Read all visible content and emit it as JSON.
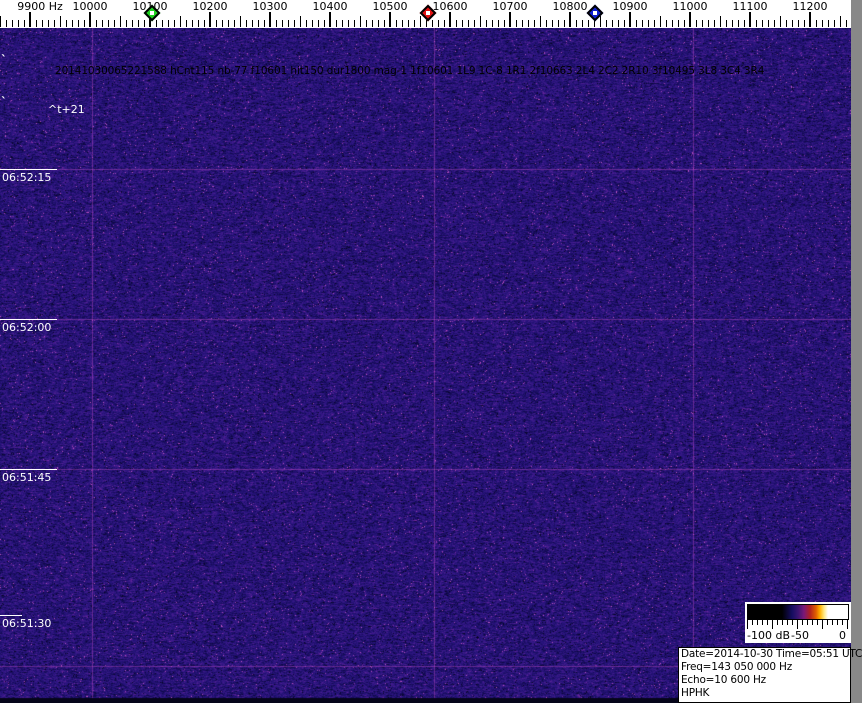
{
  "axis": {
    "tick_labels": [
      {
        "freq": 9900,
        "label": "9900 Hz"
      },
      {
        "freq": 10000,
        "label": "10000"
      },
      {
        "freq": 10100,
        "label": "10100"
      },
      {
        "freq": 10200,
        "label": "10200"
      },
      {
        "freq": 10300,
        "label": "10300"
      },
      {
        "freq": 10400,
        "label": "10400"
      },
      {
        "freq": 10500,
        "label": "10500"
      },
      {
        "freq": 10600,
        "label": "10600"
      },
      {
        "freq": 10700,
        "label": "10700"
      },
      {
        "freq": 10800,
        "label": "10800"
      },
      {
        "freq": 10900,
        "label": "10900"
      },
      {
        "freq": 11000,
        "label": "11000"
      },
      {
        "freq": 11100,
        "label": "11100"
      },
      {
        "freq": 11200,
        "label": "11200"
      }
    ],
    "markers": [
      {
        "name": "marker-green",
        "freq": 10103,
        "color": "#1ed11e"
      },
      {
        "name": "marker-red",
        "freq": 10563,
        "color": "#e01010"
      },
      {
        "name": "marker-blue",
        "freq": 10842,
        "color": "#1020d0"
      }
    ]
  },
  "spectrogram": {
    "event_text": "20141030065221588 hCnt115 nb-77 f10601 hit150 dur1800 mag-1 1f10601 1L9 1C-8 1R1 2f10663 2L4 2C2 2R10 3f10495 3L8 3C4 3R4",
    "threshold_label": "^t+21",
    "edge_mark": "`",
    "time_labels": [
      "06:52:15",
      "06:52:00",
      "06:51:45",
      "06:51:30"
    ]
  },
  "legend": {
    "db_min": "-100 dB",
    "db_mid": "-50",
    "db_max": "0"
  },
  "info_box": {
    "date_time": "Date=2014-10-30 Time=05:51 UTC",
    "freq": "Freq=143 050 000 Hz",
    "echo": "Echo=10 600 Hz",
    "station": "HPHK"
  },
  "colors": {
    "noise_base": "#2a1488",
    "grid_magenta": "#c850c8",
    "axis_bg": "#ffffff"
  }
}
